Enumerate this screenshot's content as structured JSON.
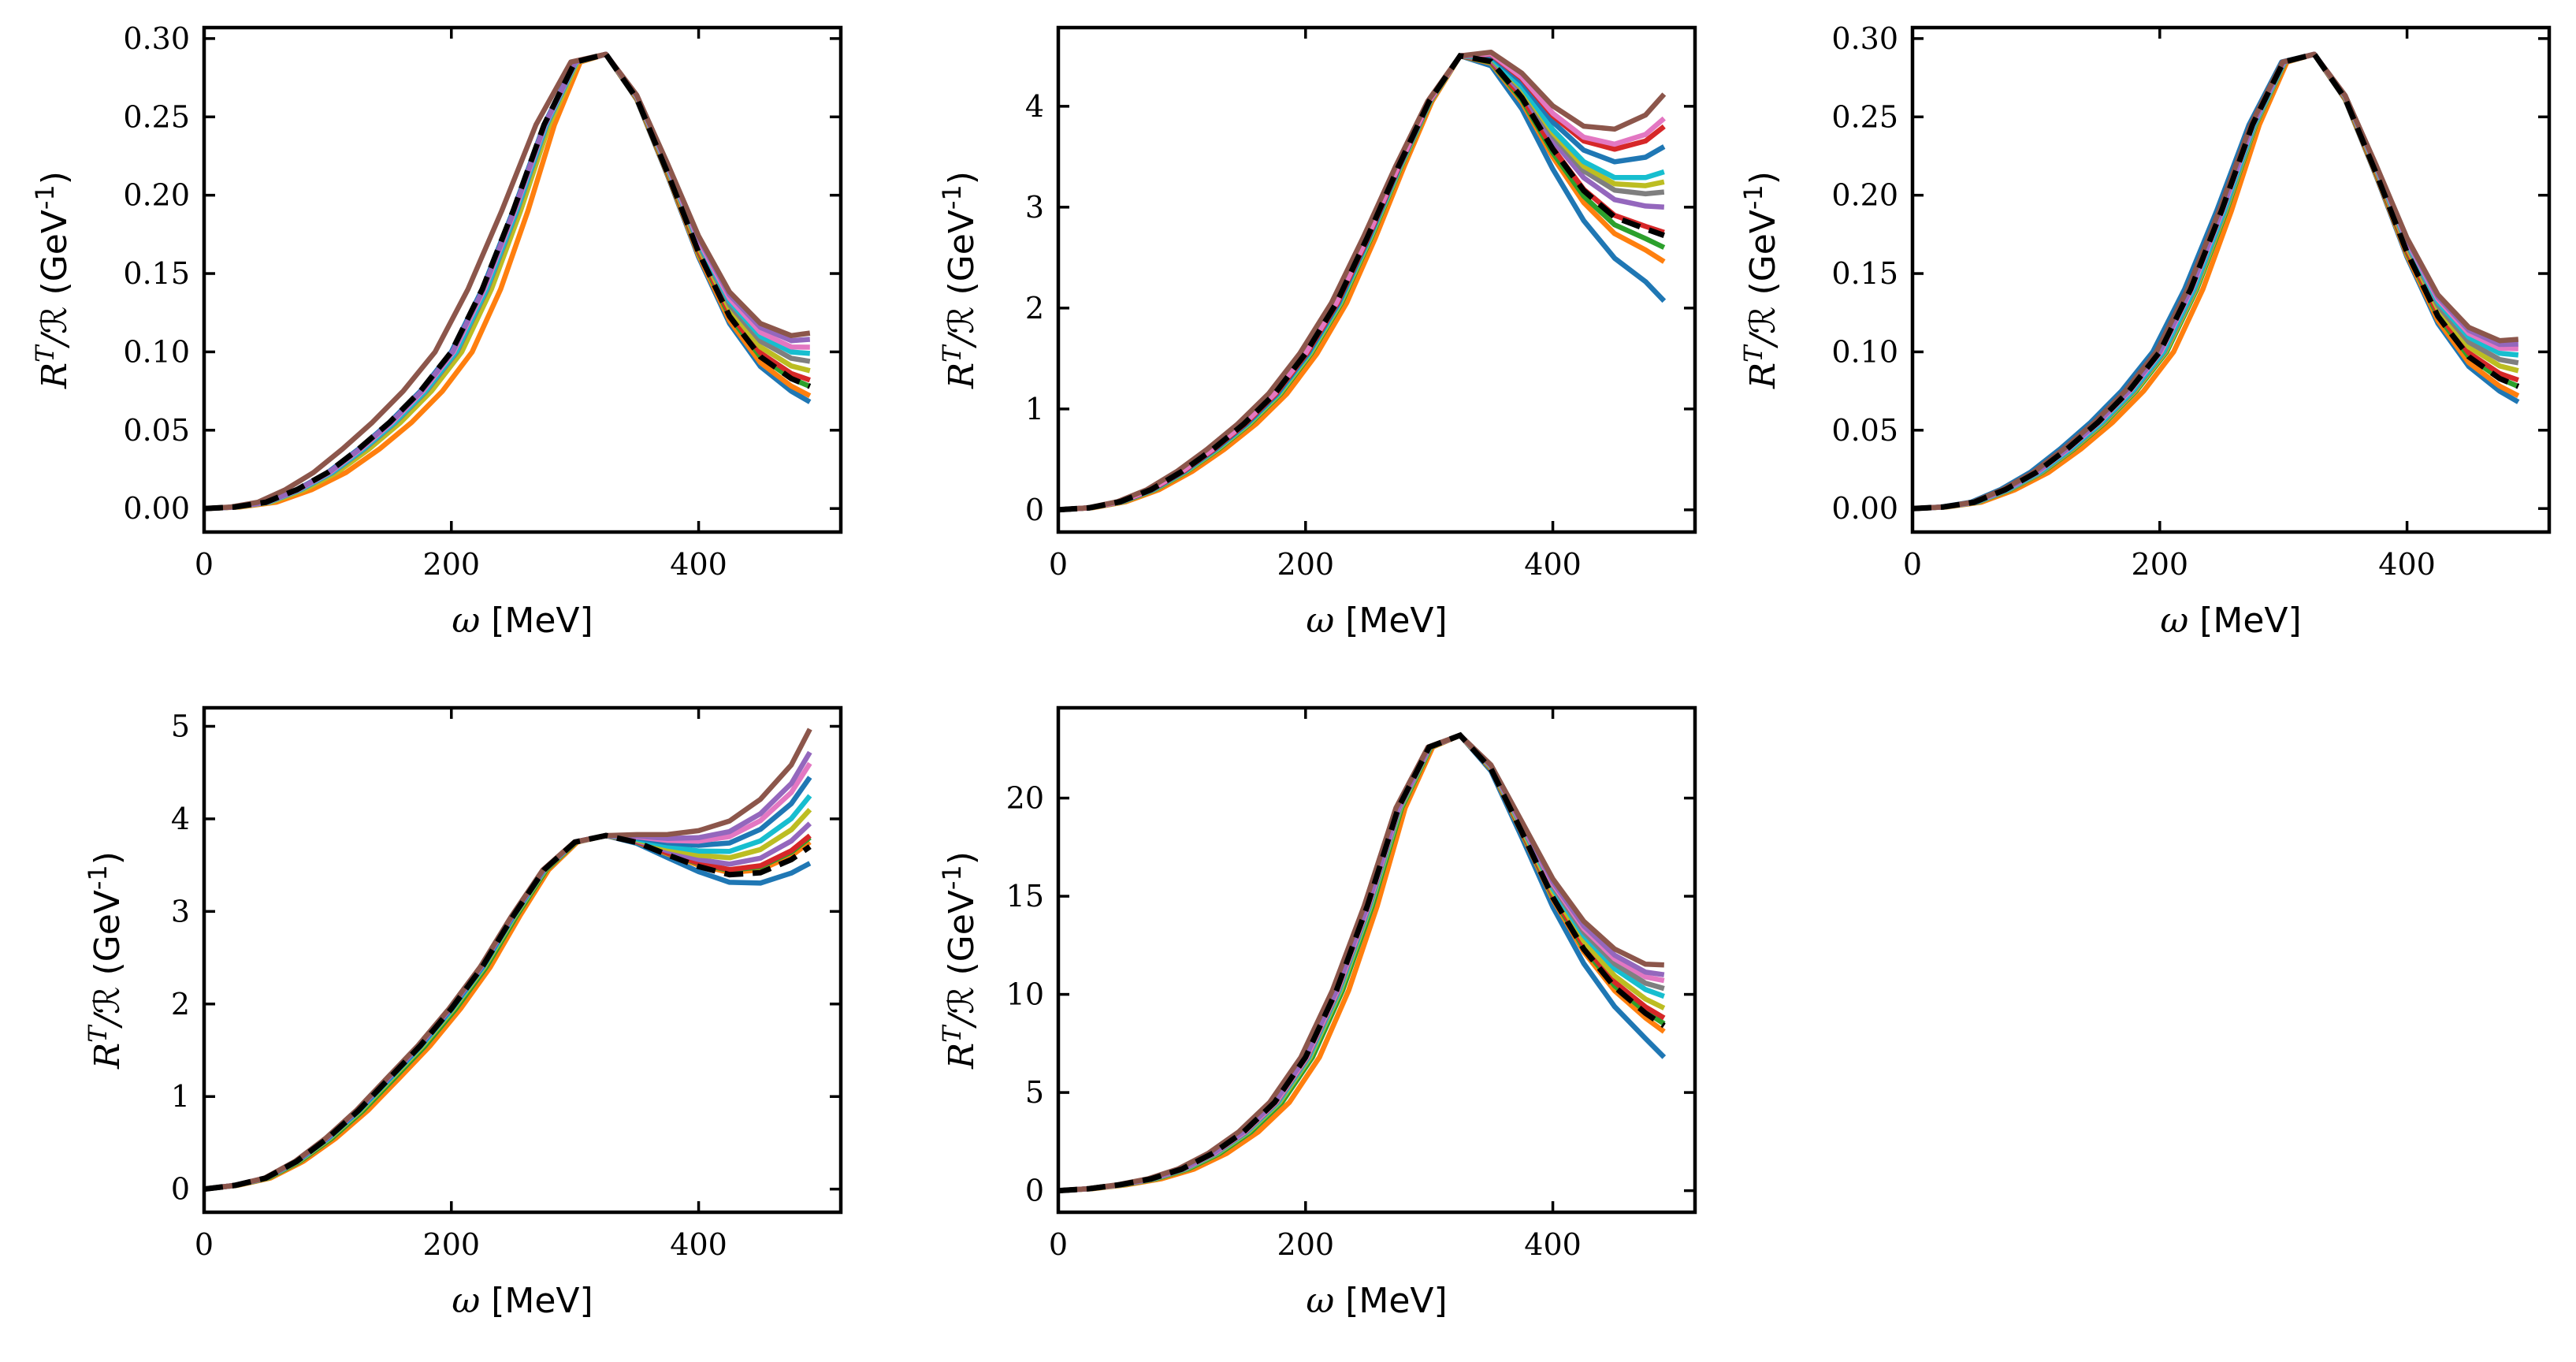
{
  "figure": {
    "panel_count": 5
  },
  "chart_data": [
    {
      "type": "line",
      "panel": "top-left",
      "xlabel": "ω [MeV]",
      "ylabel": "R^T/ℛ (GeV^-1)",
      "xlim": [
        0,
        515
      ],
      "ylim": [
        -0.015,
        0.307
      ],
      "xticks": [
        0,
        200,
        400
      ],
      "yticks": [
        0.0,
        0.05,
        0.1,
        0.15,
        0.2,
        0.25,
        0.3
      ],
      "ytick_labels": [
        "0.00",
        "0.05",
        "0.10",
        "0.15",
        "0.20",
        "0.25",
        "0.30"
      ],
      "x": [
        0,
        25,
        50,
        75,
        100,
        125,
        150,
        175,
        200,
        225,
        250,
        275,
        300,
        325,
        350,
        375,
        400,
        425,
        450,
        475,
        490
      ],
      "base": [
        0,
        0.001,
        0.004,
        0.012,
        0.023,
        0.038,
        0.055,
        0.075,
        0.1,
        0.14,
        0.19,
        0.245,
        0.285,
        0.29,
        0.262,
        0.215,
        0.165,
        0.125,
        0.1,
        0.087,
        0.083
      ],
      "series": [
        {
          "name": "blue",
          "color": "#1f77b4",
          "dx": 0,
          "tail": 0.068
        },
        {
          "name": "orange",
          "color": "#ff7f0e",
          "dx": 18,
          "tail": 0.072
        },
        {
          "name": "green",
          "color": "#2ca02c",
          "dx": 6,
          "tail": 0.078
        },
        {
          "name": "red",
          "color": "#d62728",
          "dx": 3,
          "tail": 0.082
        },
        {
          "name": "olive",
          "color": "#bcbd22",
          "dx": 9,
          "tail": 0.088
        },
        {
          "name": "gray",
          "color": "#7f7f7f",
          "dx": 5,
          "tail": 0.094
        },
        {
          "name": "cyan",
          "color": "#17becf",
          "dx": 4,
          "tail": 0.099
        },
        {
          "name": "pink",
          "color": "#e377c2",
          "dx": 2,
          "tail": 0.103
        },
        {
          "name": "purple",
          "color": "#9467bd",
          "dx": 1,
          "tail": 0.108
        },
        {
          "name": "brown",
          "color": "#8c564b",
          "dx": -14,
          "tail": 0.112
        }
      ],
      "dashed": {
        "name": "reference",
        "color": "#000000",
        "tail": 0.078
      }
    },
    {
      "type": "line",
      "panel": "top-middle",
      "xlabel": "ω [MeV]",
      "ylabel": "R^T/ℛ (GeV^-1)",
      "xlim": [
        0,
        515
      ],
      "ylim": [
        -0.22,
        4.78
      ],
      "xticks": [
        0,
        200,
        400
      ],
      "yticks": [
        0,
        1,
        2,
        3,
        4
      ],
      "ytick_labels": [
        "0",
        "1",
        "2",
        "3",
        "4"
      ],
      "x": [
        0,
        25,
        50,
        75,
        100,
        125,
        150,
        175,
        200,
        225,
        250,
        275,
        300,
        325,
        350,
        375,
        400,
        425,
        450,
        475,
        490
      ],
      "base": [
        0,
        0.02,
        0.08,
        0.2,
        0.38,
        0.6,
        0.85,
        1.15,
        1.55,
        2.05,
        2.7,
        3.4,
        4.05,
        4.5,
        4.45,
        4.1,
        3.6,
        3.2,
        2.95,
        2.85,
        2.8
      ],
      "series": [
        {
          "name": "blue",
          "color": "#1f77b4",
          "dx": 0,
          "tail": 2.07
        },
        {
          "name": "orange",
          "color": "#ff7f0e",
          "dx": 10,
          "tail": 2.46
        },
        {
          "name": "green",
          "color": "#2ca02c",
          "dx": 5,
          "tail": 2.6
        },
        {
          "name": "red",
          "color": "#d62728",
          "dx": 2,
          "tail": 2.75
        },
        {
          "name": "purple",
          "color": "#9467bd",
          "dx": 3,
          "tail": 3.0
        },
        {
          "name": "gray",
          "color": "#7f7f7f",
          "dx": 4,
          "tail": 3.15
        },
        {
          "name": "olive",
          "color": "#bcbd22",
          "dx": 4,
          "tail": 3.25
        },
        {
          "name": "cyan",
          "color": "#17becf",
          "dx": 3,
          "tail": 3.35
        },
        {
          "name": "blue-2",
          "color": "#1f77b4",
          "dx": 2,
          "tail": 3.6
        },
        {
          "name": "red-2",
          "color": "#d62728",
          "dx": 1,
          "tail": 3.8
        },
        {
          "name": "pink",
          "color": "#e377c2",
          "dx": 0,
          "tail": 3.88
        },
        {
          "name": "brown",
          "color": "#8c564b",
          "dx": -5,
          "tail": 4.12
        }
      ],
      "dashed": {
        "name": "reference",
        "color": "#000000",
        "tail": 2.72
      }
    },
    {
      "type": "line",
      "panel": "top-right",
      "xlabel": "ω [MeV]",
      "ylabel": "R^T/ℛ (GeV^-1)",
      "xlim": [
        0,
        515
      ],
      "ylim": [
        -0.015,
        0.307
      ],
      "xticks": [
        0,
        200,
        400
      ],
      "yticks": [
        0.0,
        0.05,
        0.1,
        0.15,
        0.2,
        0.25,
        0.3
      ],
      "ytick_labels": [
        "0.00",
        "0.05",
        "0.10",
        "0.15",
        "0.20",
        "0.25",
        "0.30"
      ],
      "x": [
        0,
        25,
        50,
        75,
        100,
        125,
        150,
        175,
        200,
        225,
        250,
        275,
        300,
        325,
        350,
        375,
        400,
        425,
        450,
        475,
        490
      ],
      "base": [
        0,
        0.001,
        0.004,
        0.012,
        0.023,
        0.038,
        0.055,
        0.075,
        0.1,
        0.14,
        0.19,
        0.245,
        0.285,
        0.29,
        0.262,
        0.215,
        0.165,
        0.125,
        0.1,
        0.087,
        0.083
      ],
      "series": [
        {
          "name": "blue",
          "color": "#1f77b4",
          "dx": -6,
          "tail": 0.068
        },
        {
          "name": "orange",
          "color": "#ff7f0e",
          "dx": 12,
          "tail": 0.072
        },
        {
          "name": "green",
          "color": "#2ca02c",
          "dx": 6,
          "tail": 0.078
        },
        {
          "name": "red",
          "color": "#d62728",
          "dx": 3,
          "tail": 0.082
        },
        {
          "name": "olive",
          "color": "#bcbd22",
          "dx": 5,
          "tail": 0.088
        },
        {
          "name": "gray",
          "color": "#7f7f7f",
          "dx": 4,
          "tail": 0.093
        },
        {
          "name": "cyan",
          "color": "#17becf",
          "dx": 3,
          "tail": 0.098
        },
        {
          "name": "pink",
          "color": "#e377c2",
          "dx": 1,
          "tail": 0.102
        },
        {
          "name": "purple",
          "color": "#9467bd",
          "dx": 0,
          "tail": 0.105
        },
        {
          "name": "brown",
          "color": "#8c564b",
          "dx": -3,
          "tail": 0.108
        }
      ],
      "dashed": {
        "name": "reference",
        "color": "#000000",
        "tail": 0.078
      }
    },
    {
      "type": "line",
      "panel": "bottom-left",
      "xlabel": "ω [MeV]",
      "ylabel": "R^T/ℛ (GeV^-1)",
      "xlim": [
        0,
        515
      ],
      "ylim": [
        -0.25,
        5.2
      ],
      "xticks": [
        0,
        200,
        400
      ],
      "yticks": [
        0,
        1,
        2,
        3,
        4,
        5
      ],
      "ytick_labels": [
        "0",
        "1",
        "2",
        "3",
        "4",
        "5"
      ],
      "x": [
        0,
        25,
        50,
        75,
        100,
        125,
        150,
        175,
        200,
        225,
        250,
        275,
        300,
        325,
        350,
        375,
        400,
        425,
        450,
        475,
        490
      ],
      "base": [
        0,
        0.04,
        0.12,
        0.3,
        0.55,
        0.85,
        1.2,
        1.55,
        1.95,
        2.4,
        2.95,
        3.45,
        3.75,
        3.82,
        3.75,
        3.62,
        3.5,
        3.42,
        3.45,
        3.6,
        3.75
      ],
      "series": [
        {
          "name": "blue",
          "color": "#1f77b4",
          "dx": 0,
          "tail": 3.52
        },
        {
          "name": "orange",
          "color": "#ff7f0e",
          "dx": 8,
          "tail": 3.75
        },
        {
          "name": "green",
          "color": "#2ca02c",
          "dx": 4,
          "tail": 3.8
        },
        {
          "name": "red",
          "color": "#d62728",
          "dx": 2,
          "tail": 3.82
        },
        {
          "name": "purple",
          "color": "#9467bd",
          "dx": 1,
          "tail": 3.95
        },
        {
          "name": "olive",
          "color": "#bcbd22",
          "dx": 2,
          "tail": 4.1
        },
        {
          "name": "cyan",
          "color": "#17becf",
          "dx": 1,
          "tail": 4.25
        },
        {
          "name": "blue-2",
          "color": "#1f77b4",
          "dx": 0,
          "tail": 4.45
        },
        {
          "name": "pink",
          "color": "#e377c2",
          "dx": -1,
          "tail": 4.6
        },
        {
          "name": "purple-2",
          "color": "#9467bd",
          "dx": -1,
          "tail": 4.72
        },
        {
          "name": "brown",
          "color": "#8c564b",
          "dx": -2,
          "tail": 4.97
        }
      ],
      "dashed": {
        "name": "reference",
        "color": "#000000",
        "tail": 3.7
      }
    },
    {
      "type": "line",
      "panel": "bottom-middle",
      "xlabel": "ω [MeV]",
      "ylabel": "R^T/ℛ (GeV^-1)",
      "xlim": [
        0,
        515
      ],
      "ylim": [
        -1.1,
        24.6
      ],
      "xticks": [
        0,
        200,
        400
      ],
      "yticks": [
        0,
        5,
        10,
        15,
        20
      ],
      "ytick_labels": [
        "0",
        "5",
        "10",
        "15",
        "20"
      ],
      "x": [
        0,
        25,
        50,
        75,
        100,
        125,
        150,
        175,
        200,
        225,
        250,
        275,
        300,
        325,
        350,
        375,
        400,
        425,
        450,
        475,
        490
      ],
      "base": [
        0,
        0.1,
        0.3,
        0.6,
        1.1,
        1.9,
        3.0,
        4.5,
        6.8,
        10.2,
        14.5,
        19.5,
        22.6,
        23.2,
        21.5,
        18.3,
        15.0,
        12.4,
        10.5,
        9.2,
        8.6
      ],
      "series": [
        {
          "name": "blue",
          "color": "#1f77b4",
          "dx": 0,
          "tail": 6.8
        },
        {
          "name": "orange",
          "color": "#ff7f0e",
          "dx": 12,
          "tail": 8.1
        },
        {
          "name": "green",
          "color": "#2ca02c",
          "dx": 6,
          "tail": 8.5
        },
        {
          "name": "red",
          "color": "#d62728",
          "dx": 3,
          "tail": 8.8
        },
        {
          "name": "olive",
          "color": "#bcbd22",
          "dx": 4,
          "tail": 9.3
        },
        {
          "name": "cyan",
          "color": "#17becf",
          "dx": 3,
          "tail": 9.9
        },
        {
          "name": "gray",
          "color": "#7f7f7f",
          "dx": 2,
          "tail": 10.3
        },
        {
          "name": "pink",
          "color": "#e377c2",
          "dx": 1,
          "tail": 10.7
        },
        {
          "name": "purple",
          "color": "#9467bd",
          "dx": 0,
          "tail": 11.0
        },
        {
          "name": "brown",
          "color": "#8c564b",
          "dx": -4,
          "tail": 11.5
        }
      ],
      "dashed": {
        "name": "reference",
        "color": "#000000",
        "tail": 8.4
      }
    }
  ]
}
